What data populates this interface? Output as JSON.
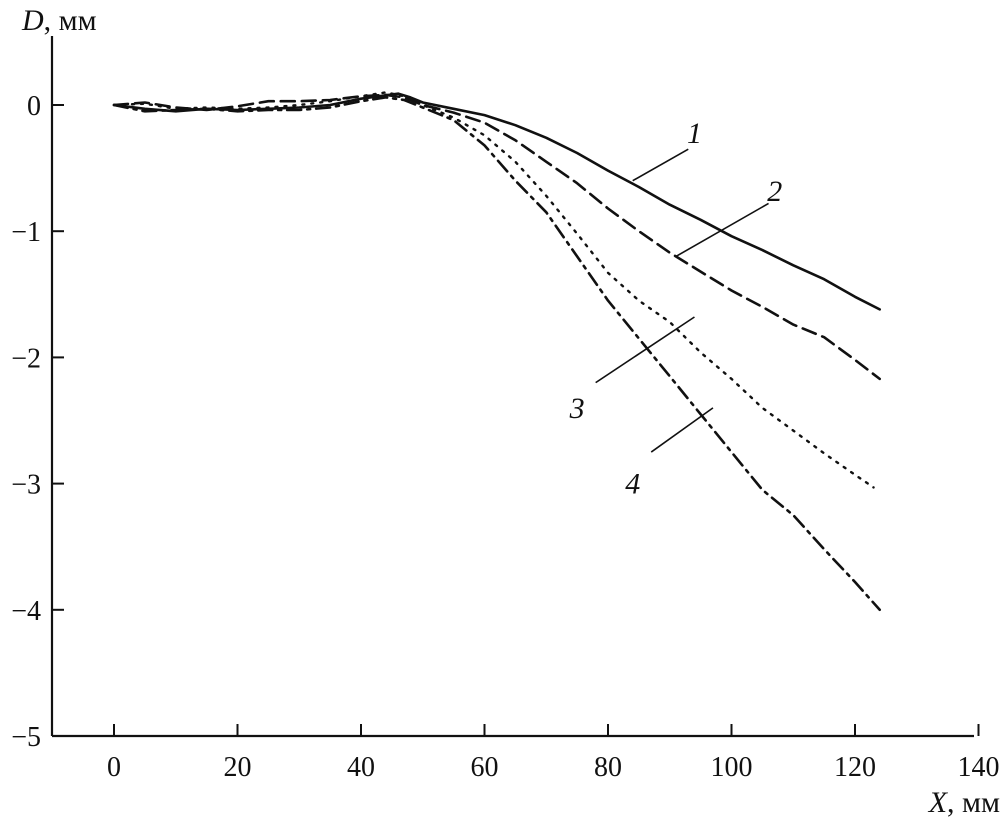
{
  "chart_data": {
    "type": "line",
    "ylabel": {
      "var": "D",
      "unit": ", мм"
    },
    "xlabel": {
      "var": "X",
      "unit": ", мм"
    },
    "xlim": [
      -10,
      140
    ],
    "ylim": [
      -5,
      0.5
    ],
    "xticks": [
      0,
      20,
      40,
      60,
      80,
      100,
      120,
      140
    ],
    "yticks": [
      0,
      -1,
      -2,
      -3,
      -4,
      -5
    ],
    "xtick_labels": [
      "0",
      "20",
      "40",
      "60",
      "80",
      "100",
      "120",
      "140"
    ],
    "ytick_labels": [
      "0",
      "−1",
      "−2",
      "−3",
      "−4",
      "−5"
    ],
    "grid": false,
    "series": [
      {
        "name": "1",
        "style": "solid",
        "x": [
          0,
          5,
          10,
          15,
          20,
          25,
          30,
          35,
          40,
          43,
          46,
          48,
          50,
          55,
          60,
          65,
          70,
          75,
          80,
          85,
          90,
          95,
          100,
          105,
          110,
          115,
          120,
          124
        ],
        "y": [
          0.0,
          -0.03,
          -0.05,
          -0.03,
          -0.04,
          -0.03,
          -0.02,
          0.0,
          0.05,
          0.07,
          0.09,
          0.06,
          0.02,
          -0.03,
          -0.08,
          -0.16,
          -0.26,
          -0.38,
          -0.52,
          -0.65,
          -0.79,
          -0.91,
          -1.04,
          -1.15,
          -1.27,
          -1.38,
          -1.52,
          -1.62
        ]
      },
      {
        "name": "2",
        "style": "dashed",
        "x": [
          0,
          5,
          10,
          15,
          20,
          25,
          30,
          35,
          40,
          44,
          47,
          50,
          55,
          60,
          65,
          70,
          75,
          80,
          85,
          90,
          95,
          100,
          105,
          110,
          115,
          120,
          124
        ],
        "y": [
          0.0,
          0.02,
          -0.02,
          -0.04,
          -0.01,
          0.03,
          0.03,
          0.04,
          0.07,
          0.08,
          0.06,
          0.0,
          -0.06,
          -0.14,
          -0.28,
          -0.45,
          -0.62,
          -0.82,
          -1.0,
          -1.17,
          -1.32,
          -1.47,
          -1.6,
          -1.74,
          -1.84,
          -2.02,
          -2.17
        ]
      },
      {
        "name": "3",
        "style": "dotted",
        "x": [
          0,
          5,
          10,
          15,
          20,
          25,
          30,
          35,
          40,
          44,
          47,
          50,
          55,
          60,
          65,
          70,
          75,
          80,
          85,
          90,
          95,
          100,
          105,
          110,
          115,
          120,
          123
        ],
        "y": [
          0.0,
          0.01,
          -0.03,
          -0.02,
          -0.03,
          -0.02,
          0.0,
          0.03,
          0.07,
          0.1,
          0.07,
          0.0,
          -0.1,
          -0.24,
          -0.45,
          -0.72,
          -1.02,
          -1.33,
          -1.55,
          -1.72,
          -1.96,
          -2.17,
          -2.4,
          -2.58,
          -2.76,
          -2.93,
          -3.03
        ]
      },
      {
        "name": "4",
        "style": "dashdot",
        "x": [
          0,
          5,
          10,
          15,
          20,
          25,
          30,
          35,
          40,
          44,
          47,
          50,
          55,
          60,
          65,
          70,
          75,
          80,
          85,
          90,
          95,
          100,
          105,
          110,
          115,
          120,
          124
        ],
        "y": [
          0.0,
          -0.05,
          -0.04,
          -0.03,
          -0.05,
          -0.04,
          -0.04,
          -0.02,
          0.03,
          0.06,
          0.04,
          -0.02,
          -0.12,
          -0.32,
          -0.6,
          -0.85,
          -1.2,
          -1.55,
          -1.85,
          -2.15,
          -2.45,
          -2.75,
          -3.05,
          -3.25,
          -3.52,
          -3.78,
          -4.0
        ]
      }
    ],
    "curve_labels": [
      {
        "text": "1",
        "leader_from": [
          84,
          -0.6
        ],
        "leader_to": [
          93,
          -0.35
        ],
        "text_at": [
          94,
          -0.22
        ]
      },
      {
        "text": "2",
        "leader_from": [
          91,
          -1.2
        ],
        "leader_to": [
          106,
          -0.78
        ],
        "text_at": [
          107,
          -0.68
        ]
      },
      {
        "text": "3",
        "leader_from": [
          94,
          -1.68
        ],
        "leader_to": [
          78,
          -2.2
        ],
        "text_at": [
          75,
          -2.4
        ]
      },
      {
        "text": "4",
        "leader_from": [
          97,
          -2.4
        ],
        "leader_to": [
          87,
          -2.75
        ],
        "text_at": [
          84,
          -3.0
        ]
      }
    ]
  }
}
